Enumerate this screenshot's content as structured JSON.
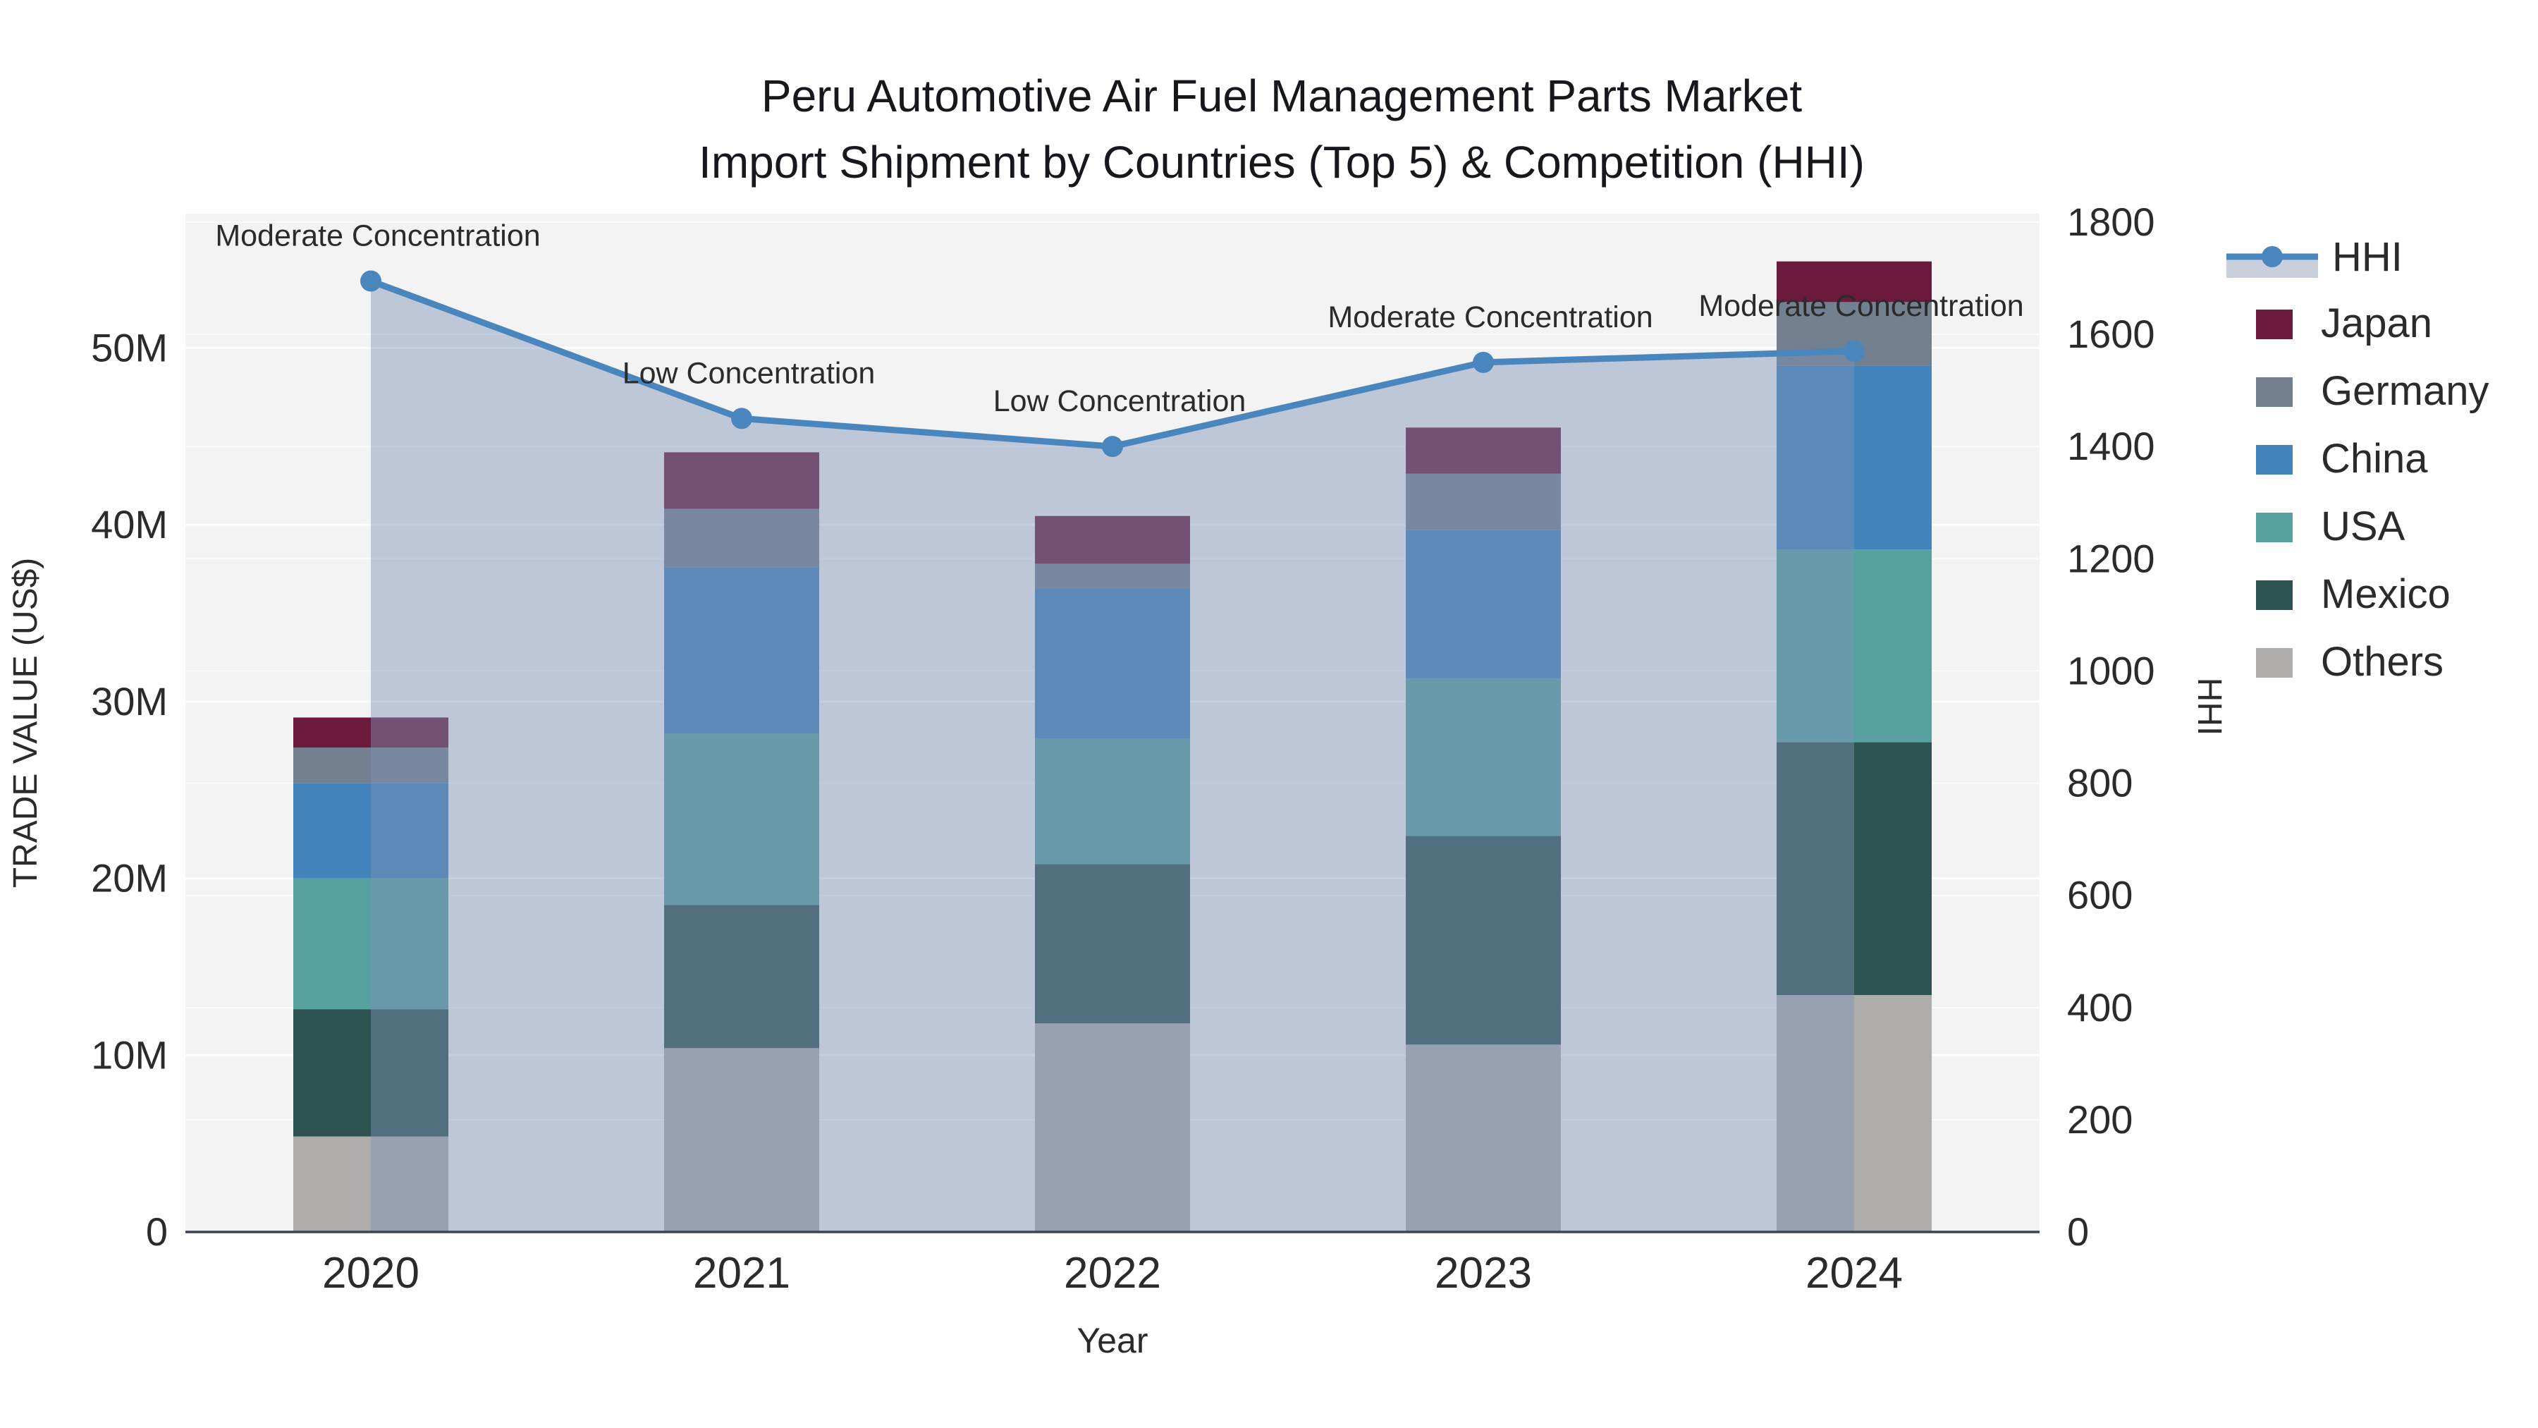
{
  "title": {
    "line1": "Peru Automotive Air Fuel Management Parts Market",
    "line2": "Import Shipment by Countries (Top 5) & Competition (HHI)"
  },
  "axes": {
    "x_title": "Year",
    "y_left_title": "TRADE VALUE (US$)",
    "y_right_title": "HHI",
    "y_left_ticks": [
      "0",
      "10M",
      "20M",
      "30M",
      "40M",
      "50M"
    ],
    "y_left_tick_values": [
      0,
      10,
      20,
      30,
      40,
      50
    ],
    "y_right_tick_values": [
      0,
      200,
      400,
      600,
      800,
      1000,
      1200,
      1400,
      1600,
      1800
    ]
  },
  "colors": {
    "hhi_line": "#4a86be",
    "area_fill": "rgba(127,147,184,0.45)",
    "plot_bg": "#f3f3f3",
    "grid": "#ffffff",
    "zero_line": "#3c4454",
    "text": "#2b2b2b"
  },
  "legend": {
    "items": [
      {
        "label": "HHI",
        "type": "line",
        "color": "#4a86be"
      },
      {
        "label": "Japan",
        "type": "swatch",
        "color": "#6b1a3c"
      },
      {
        "label": "Germany",
        "type": "swatch",
        "color": "#73808f"
      },
      {
        "label": "China",
        "type": "swatch",
        "color": "#4484bc"
      },
      {
        "label": "USA",
        "type": "swatch",
        "color": "#57a1a0"
      },
      {
        "label": "Mexico",
        "type": "swatch",
        "color": "#2d5350"
      },
      {
        "label": "Others",
        "type": "swatch",
        "color": "#aeadac"
      }
    ]
  },
  "chart_data": {
    "type": "bar",
    "subtype": "stacked bars + line on secondary axis",
    "categories": [
      "2020",
      "2021",
      "2022",
      "2023",
      "2024"
    ],
    "stack_order_bottom_to_top": [
      "Others",
      "Mexico",
      "USA",
      "China",
      "Germany",
      "Japan"
    ],
    "values_unit": "millions of US$ (trade value, left axis)",
    "series": [
      {
        "name": "Others",
        "color": "#aeadac",
        "values": [
          5.4,
          10.4,
          11.8,
          10.6,
          13.4
        ]
      },
      {
        "name": "Mexico",
        "color": "#2d5350",
        "values": [
          7.2,
          8.1,
          9.0,
          11.8,
          14.3
        ]
      },
      {
        "name": "USA",
        "color": "#57a1a0",
        "values": [
          7.4,
          9.7,
          7.1,
          8.9,
          10.9
        ]
      },
      {
        "name": "China",
        "color": "#4484bc",
        "values": [
          5.4,
          9.4,
          8.5,
          8.4,
          10.4
        ]
      },
      {
        "name": "Germany",
        "color": "#73808f",
        "values": [
          2.0,
          3.3,
          1.4,
          3.2,
          3.6
        ]
      },
      {
        "name": "Japan",
        "color": "#6b1a3c",
        "values": [
          1.7,
          3.2,
          2.7,
          2.6,
          2.3
        ]
      }
    ],
    "bar_totals": [
      29.1,
      44.1,
      40.5,
      45.5,
      54.9
    ],
    "line_series": {
      "name": "HHI",
      "axis": "right",
      "values": [
        1695,
        1450,
        1400,
        1550,
        1570
      ],
      "has_area_fill": true
    },
    "annotations": [
      {
        "category": "2020",
        "text": "Moderate Concentration"
      },
      {
        "category": "2021",
        "text": "Low Concentration"
      },
      {
        "category": "2022",
        "text": "Low Concentration"
      },
      {
        "category": "2023",
        "text": "Moderate Concentration"
      },
      {
        "category": "2024",
        "text": "Moderate Concentration"
      }
    ],
    "y_left": {
      "title": "TRADE VALUE (US$)",
      "range": [
        0,
        57.6
      ],
      "tick_format": "M"
    },
    "y_right": {
      "title": "HHI",
      "range": [
        0,
        1815
      ]
    },
    "legend_position": "right",
    "grid": true
  }
}
